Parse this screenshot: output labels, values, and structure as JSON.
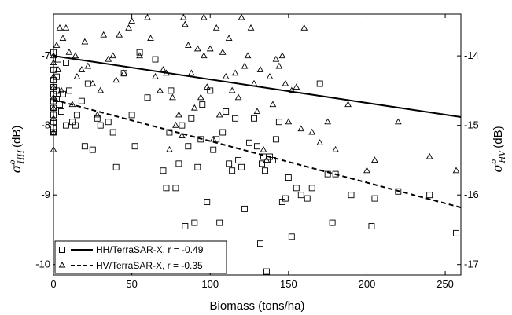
{
  "chart_data": {
    "type": "scatter",
    "xlabel": "Biomass (tons/ha)",
    "ylabel_left": {
      "symbol": "σ",
      "sup": "o",
      "sub": "HH",
      "unit": "(dB)"
    },
    "ylabel_right": {
      "symbol": "σ",
      "sup": "o",
      "sub": "HV",
      "unit": "(dB)"
    },
    "xlim": [
      0,
      260
    ],
    "ylim_left": [
      -10.15,
      -6.4
    ],
    "ylim_right": [
      -17.15,
      -13.4
    ],
    "xticks": [
      0,
      50,
      100,
      150,
      200,
      250
    ],
    "yticks_left": [
      -10,
      -9,
      -8,
      -7
    ],
    "yticks_right": [
      -17,
      -16,
      -15,
      -14
    ],
    "grid": false,
    "legend_position": "bottom-left",
    "series": [
      {
        "name": "HH/TerraSAR-X, r = -0.49",
        "marker": "square",
        "axis": "left",
        "fit": {
          "x": [
            0,
            260
          ],
          "y": [
            -7.0,
            -7.88
          ],
          "style": "solid"
        },
        "points": [
          [
            0,
            -6.95
          ],
          [
            0,
            -7.2
          ],
          [
            0,
            -7.35
          ],
          [
            0,
            -7.45
          ],
          [
            0,
            -7.55
          ],
          [
            0,
            -7.65
          ],
          [
            0,
            -7.75
          ],
          [
            0,
            -7.85
          ],
          [
            0,
            -7.95
          ],
          [
            0,
            -8.05
          ],
          [
            0,
            -8.1
          ],
          [
            2,
            -7.3
          ],
          [
            2,
            -7.5
          ],
          [
            2,
            -7.62
          ],
          [
            3,
            -7.05
          ],
          [
            4,
            -7.7
          ],
          [
            5,
            -7.8
          ],
          [
            6,
            -7.55
          ],
          [
            8,
            -8.0
          ],
          [
            8,
            -7.1
          ],
          [
            10,
            -7.5
          ],
          [
            12,
            -7.95
          ],
          [
            14,
            -8.0
          ],
          [
            15,
            -7.85
          ],
          [
            18,
            -7.65
          ],
          [
            20,
            -8.3
          ],
          [
            22,
            -7.4
          ],
          [
            25,
            -8.35
          ],
          [
            28,
            -7.9
          ],
          [
            30,
            -8.0
          ],
          [
            35,
            -7.95
          ],
          [
            38,
            -8.1
          ],
          [
            40,
            -8.6
          ],
          [
            45,
            -7.25
          ],
          [
            50,
            -7.85
          ],
          [
            52,
            -8.3
          ],
          [
            55,
            -6.95
          ],
          [
            60,
            -7.6
          ],
          [
            65,
            -7.05
          ],
          [
            70,
            -8.65
          ],
          [
            72,
            -8.9
          ],
          [
            74,
            -8.1
          ],
          [
            75,
            -7.5
          ],
          [
            78,
            -8.9
          ],
          [
            80,
            -8.55
          ],
          [
            82,
            -8.0
          ],
          [
            84,
            -9.45
          ],
          [
            86,
            -8.3
          ],
          [
            88,
            -7.9
          ],
          [
            90,
            -9.4
          ],
          [
            92,
            -8.6
          ],
          [
            94,
            -8.2
          ],
          [
            95,
            -7.7
          ],
          [
            98,
            -9.1
          ],
          [
            100,
            -7.5
          ],
          [
            102,
            -8.35
          ],
          [
            104,
            -8.2
          ],
          [
            106,
            -9.4
          ],
          [
            108,
            -8.1
          ],
          [
            110,
            -7.8
          ],
          [
            112,
            -8.55
          ],
          [
            114,
            -8.65
          ],
          [
            116,
            -7.9
          ],
          [
            118,
            -8.5
          ],
          [
            120,
            -8.6
          ],
          [
            122,
            -9.2
          ],
          [
            125,
            -8.25
          ],
          [
            128,
            -7.9
          ],
          [
            130,
            -8.3
          ],
          [
            132,
            -9.7
          ],
          [
            133,
            -8.55
          ],
          [
            134,
            -8.45
          ],
          [
            135,
            -8.65
          ],
          [
            136,
            -10.1
          ],
          [
            138,
            -8.45
          ],
          [
            140,
            -8.5
          ],
          [
            142,
            -8.2
          ],
          [
            144,
            -7.95
          ],
          [
            146,
            -9.1
          ],
          [
            148,
            -9.05
          ],
          [
            150,
            -8.75
          ],
          [
            152,
            -9.6
          ],
          [
            155,
            -8.9
          ],
          [
            158,
            -9.0
          ],
          [
            162,
            -9.05
          ],
          [
            165,
            -8.9
          ],
          [
            170,
            -7.4
          ],
          [
            175,
            -8.7
          ],
          [
            178,
            -9.4
          ],
          [
            180,
            -8.7
          ],
          [
            190,
            -9.0
          ],
          [
            203,
            -9.45
          ],
          [
            205,
            -9.05
          ],
          [
            220,
            -8.95
          ],
          [
            240,
            -9.0
          ],
          [
            257,
            -9.55
          ]
        ]
      },
      {
        "name": "HV/TerraSAR-X, r = -0.35",
        "marker": "triangle",
        "axis": "right",
        "fit": {
          "x": [
            0,
            260
          ],
          "y": [
            -14.63,
            -16.18
          ],
          "style": "dashed"
        },
        "points": [
          [
            0,
            -14.0
          ],
          [
            0,
            -14.1
          ],
          [
            0,
            -14.3
          ],
          [
            0,
            -14.45
          ],
          [
            0,
            -14.6
          ],
          [
            0,
            -14.75
          ],
          [
            0,
            -14.9
          ],
          [
            0,
            -15.1
          ],
          [
            0,
            -15.35
          ],
          [
            2,
            -13.85
          ],
          [
            3,
            -14.2
          ],
          [
            4,
            -13.6
          ],
          [
            5,
            -14.5
          ],
          [
            6,
            -13.75
          ],
          [
            8,
            -13.6
          ],
          [
            10,
            -13.95
          ],
          [
            12,
            -14.7
          ],
          [
            14,
            -14.0
          ],
          [
            15,
            -14.3
          ],
          [
            18,
            -14.2
          ],
          [
            20,
            -13.8
          ],
          [
            22,
            -14.15
          ],
          [
            25,
            -14.4
          ],
          [
            28,
            -14.85
          ],
          [
            30,
            -14.5
          ],
          [
            32,
            -13.7
          ],
          [
            35,
            -14.05
          ],
          [
            38,
            -14.0
          ],
          [
            40,
            -14.35
          ],
          [
            42,
            -13.7
          ],
          [
            45,
            -14.25
          ],
          [
            48,
            -13.6
          ],
          [
            50,
            -13.5
          ],
          [
            55,
            -14.0
          ],
          [
            60,
            -13.45
          ],
          [
            62,
            -13.75
          ],
          [
            65,
            -14.3
          ],
          [
            68,
            -14.5
          ],
          [
            70,
            -14.2
          ],
          [
            72,
            -14.25
          ],
          [
            74,
            -15.35
          ],
          [
            76,
            -14.6
          ],
          [
            78,
            -15.0
          ],
          [
            80,
            -14.85
          ],
          [
            82,
            -15.15
          ],
          [
            84,
            -13.55
          ],
          [
            86,
            -13.85
          ],
          [
            88,
            -14.25
          ],
          [
            90,
            -14.75
          ],
          [
            92,
            -13.9
          ],
          [
            94,
            -14.6
          ],
          [
            96,
            -14.0
          ],
          [
            98,
            -14.45
          ],
          [
            100,
            -13.9
          ],
          [
            102,
            -15.2
          ],
          [
            104,
            -13.6
          ],
          [
            106,
            -14.85
          ],
          [
            108,
            -13.95
          ],
          [
            110,
            -14.3
          ],
          [
            112,
            -13.75
          ],
          [
            114,
            -14.5
          ],
          [
            116,
            -14.25
          ],
          [
            118,
            -14.6
          ],
          [
            120,
            -13.45
          ],
          [
            122,
            -14.15
          ],
          [
            124,
            -14.0
          ],
          [
            126,
            -13.6
          ],
          [
            128,
            -14.4
          ],
          [
            130,
            -14.8
          ],
          [
            132,
            -14.2
          ],
          [
            134,
            -15.35
          ],
          [
            136,
            -15.5
          ],
          [
            138,
            -14.3
          ],
          [
            140,
            -14.7
          ],
          [
            142,
            -14.05
          ],
          [
            144,
            -14.15
          ],
          [
            146,
            -14.0
          ],
          [
            148,
            -14.4
          ],
          [
            150,
            -14.95
          ],
          [
            152,
            -14.5
          ],
          [
            155,
            -14.45
          ],
          [
            158,
            -15.05
          ],
          [
            160,
            -13.6
          ],
          [
            165,
            -15.1
          ],
          [
            170,
            -15.25
          ],
          [
            175,
            -14.95
          ],
          [
            180,
            -15.35
          ],
          [
            188,
            -14.7
          ],
          [
            200,
            -15.65
          ],
          [
            205,
            -15.5
          ],
          [
            220,
            -14.95
          ],
          [
            240,
            -15.45
          ],
          [
            257,
            -15.65
          ],
          [
            96,
            -13.45
          ],
          [
            83,
            -13.45
          ]
        ]
      }
    ]
  }
}
